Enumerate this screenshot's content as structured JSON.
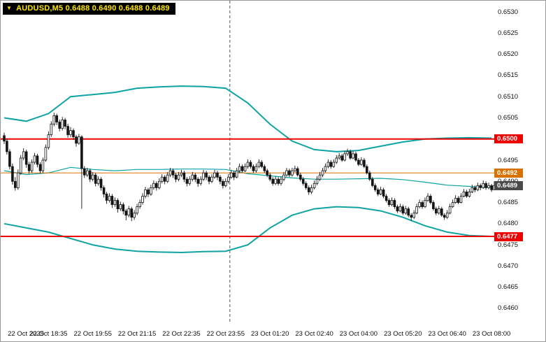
{
  "header": {
    "symbol_ohlc": "AUDUSD,M5  0.6488 0.6490 0.6488 0.6489",
    "symbol": "AUDUSD",
    "timeframe": "M5",
    "open": "0.6488",
    "high": "0.6490",
    "low": "0.6488",
    "close": "0.6489",
    "text_color": "#FFE600",
    "bg": "#000000"
  },
  "colors": {
    "band": "#0FA3A3",
    "bull": "#FFFFFF",
    "bear": "#141414",
    "candle_stroke": "#141414",
    "separator": "#555555",
    "red_line": "#EE0000",
    "orange_line": "#D97100",
    "current_label_bg": "#4A4A4A",
    "axis_text": "#111111"
  },
  "chart_data": {
    "type": "candlestick",
    "title": "AUDUSD,M5",
    "symbol": "AUDUSD",
    "timeframe": "M5",
    "current_bar": {
      "open": 0.6488,
      "high": 0.649,
      "low": 0.6488,
      "close": 0.6489
    },
    "ylim": [
      0.6458,
      0.6532
    ],
    "y_ticks": [
      "0.6530",
      "0.6525",
      "0.6520",
      "0.6515",
      "0.6510",
      "0.6505",
      "0.6500",
      "0.6495",
      "0.6490",
      "0.6485",
      "0.6480",
      "0.6475",
      "0.6470",
      "0.6465",
      "0.6460"
    ],
    "x_labels": [
      "22 Oct 2025",
      "22 Oct 18:35",
      "22 Oct 19:55",
      "22 Oct 21:15",
      "22 Oct 22:35",
      "22 Oct 23:55",
      "23 Oct 01:20",
      "23 Oct 02:40",
      "23 Oct 04:00",
      "23 Oct 05:20",
      "23 Oct 06:40",
      "23 Oct 08:00"
    ],
    "bars_per_x_tick": 16,
    "hlines": [
      {
        "price": 0.65,
        "label": "0.6500",
        "color": "#EE0000",
        "width": 2
      },
      {
        "price": 0.6492,
        "label": "0.6492",
        "color": "#D97100",
        "width": 1
      },
      {
        "price": 0.6477,
        "label": "0.6477",
        "color": "#EE0000",
        "width": 2
      }
    ],
    "current_price_label": {
      "price": 0.6489,
      "label": "0.6489",
      "bg": "#4A4A4A",
      "text": "#FFFFFF"
    },
    "day_separator": {
      "after_bar_index": 81
    },
    "price_base": 0.64,
    "price_unit": "candle and band values are (price - 0.64) * 10000",
    "candles": [
      [
        100.8,
        101.5,
        98.8,
        99.5
      ],
      [
        99.5,
        100.1,
        96.3,
        97
      ],
      [
        97,
        97.6,
        92.8,
        93.5
      ],
      [
        93.5,
        94.2,
        89.2,
        90
      ],
      [
        90,
        91,
        87.8,
        88.5
      ],
      [
        88.5,
        92.8,
        88,
        92
      ],
      [
        92,
        96.2,
        91.5,
        95.5
      ],
      [
        95.5,
        97.8,
        95,
        97
      ],
      [
        97,
        97.5,
        93.2,
        94
      ],
      [
        94,
        94.6,
        91.8,
        92.5
      ],
      [
        92.5,
        95.2,
        92,
        94.5
      ],
      [
        94.5,
        96.7,
        94,
        96
      ],
      [
        96,
        96.5,
        93.3,
        94
      ],
      [
        94,
        94.5,
        91.8,
        92.5
      ],
      [
        92.5,
        95.6,
        92,
        95
      ],
      [
        95,
        98.7,
        94.6,
        98
      ],
      [
        98,
        101.8,
        97.5,
        101
      ],
      [
        101,
        104.2,
        100.5,
        103.5
      ],
      [
        103.5,
        106.2,
        103,
        105.5
      ],
      [
        105.5,
        106,
        103.3,
        104
      ],
      [
        104,
        104.6,
        101.8,
        102.5
      ],
      [
        102.5,
        105.2,
        102,
        104.5
      ],
      [
        104.5,
        105,
        102.3,
        103
      ],
      [
        103,
        103.6,
        100.3,
        101
      ],
      [
        101,
        102.8,
        100.4,
        102
      ],
      [
        102,
        102.5,
        99.8,
        100.5
      ],
      [
        100.5,
        101,
        98.2,
        99
      ],
      [
        99,
        101.2,
        98.6,
        100.5
      ],
      [
        100.5,
        100.9,
        83.5,
        93
      ],
      [
        93,
        93.6,
        90.8,
        91.5
      ],
      [
        91.5,
        93.2,
        91,
        92.5
      ],
      [
        92.5,
        93,
        89.8,
        90.5
      ],
      [
        90.5,
        92.2,
        90,
        91.5
      ],
      [
        91.5,
        92,
        88.8,
        89.5
      ],
      [
        89.5,
        91.2,
        89,
        90.5
      ],
      [
        90.5,
        91,
        87.8,
        88.5
      ],
      [
        88.5,
        89,
        86.2,
        87
      ],
      [
        87,
        87.5,
        84.7,
        85.5
      ],
      [
        85.5,
        87.2,
        85,
        86.5
      ],
      [
        86.5,
        87,
        83.7,
        84.5
      ],
      [
        84.5,
        86.2,
        84,
        85.5
      ],
      [
        85.5,
        86,
        82.6,
        83.5
      ],
      [
        83.5,
        85.2,
        83,
        84.5
      ],
      [
        84.5,
        85,
        82.2,
        83
      ],
      [
        83,
        83.5,
        80.8,
        82
      ],
      [
        82,
        84.2,
        81.5,
        83.5
      ],
      [
        83.5,
        84,
        80.6,
        81.5
      ],
      [
        81.5,
        83.2,
        80.9,
        82.5
      ],
      [
        82.5,
        84.7,
        82,
        84
      ],
      [
        84,
        85.7,
        83.5,
        85
      ],
      [
        85,
        87.2,
        84.5,
        86.5
      ],
      [
        86.5,
        88.7,
        86,
        88
      ],
      [
        88,
        88.5,
        86.3,
        87
      ],
      [
        87,
        89.2,
        86.6,
        88.5
      ],
      [
        88.5,
        90.2,
        88,
        89.5
      ],
      [
        89.5,
        90,
        87.8,
        88.5
      ],
      [
        88.5,
        90.7,
        88.1,
        90
      ],
      [
        90,
        91.7,
        89.5,
        91
      ],
      [
        91,
        91.5,
        89.3,
        90
      ],
      [
        90,
        92.2,
        89.6,
        91.5
      ],
      [
        91.5,
        93.2,
        91,
        92.5
      ],
      [
        92.5,
        93,
        90.8,
        91.5
      ],
      [
        91.5,
        92,
        89.8,
        90.5
      ],
      [
        90.5,
        92.2,
        90,
        91.5
      ],
      [
        91.5,
        92.7,
        91,
        92
      ],
      [
        92,
        92.5,
        89.8,
        90.5
      ],
      [
        90.5,
        91,
        88.8,
        89.5
      ],
      [
        89.5,
        91.2,
        89,
        90.5
      ],
      [
        90.5,
        92.2,
        90,
        91.5
      ],
      [
        91.5,
        92,
        89.8,
        90.5
      ],
      [
        90.5,
        91,
        88.7,
        89.5
      ],
      [
        89.5,
        91.2,
        89,
        90.5
      ],
      [
        90.5,
        92.7,
        90.1,
        92
      ],
      [
        92,
        92.5,
        90.3,
        91
      ],
      [
        91,
        91.5,
        89.3,
        90
      ],
      [
        90,
        91.7,
        89.6,
        91
      ],
      [
        91,
        92.7,
        90.6,
        92
      ],
      [
        92,
        92.5,
        90.3,
        91
      ],
      [
        91,
        91.5,
        89.3,
        90
      ],
      [
        90,
        90.5,
        88.3,
        89
      ],
      [
        89,
        90.7,
        88.6,
        90
      ],
      [
        90,
        91.7,
        89.5,
        91
      ],
      [
        91,
        92.7,
        90.6,
        92
      ],
      [
        92,
        92.5,
        90.3,
        91
      ],
      [
        91,
        93.2,
        90.7,
        92.5
      ],
      [
        92.5,
        94.2,
        92,
        93.5
      ],
      [
        93.5,
        94,
        92.1,
        92.5
      ],
      [
        92.5,
        94.2,
        92.2,
        93.5
      ],
      [
        93.5,
        95.2,
        93,
        94.5
      ],
      [
        94.5,
        95,
        93,
        93.5
      ],
      [
        93.5,
        94,
        92,
        92.5
      ],
      [
        92.5,
        94.2,
        92.1,
        93.5
      ],
      [
        93.5,
        95.2,
        93.1,
        94.5
      ],
      [
        94.5,
        95,
        93.1,
        93.5
      ],
      [
        93.5,
        94,
        92,
        92.5
      ],
      [
        92.5,
        93,
        91,
        91.5
      ],
      [
        91.5,
        92,
        90,
        90.5
      ],
      [
        90.5,
        91,
        89,
        89.5
      ],
      [
        89.5,
        91.2,
        89.1,
        90.5
      ],
      [
        90.5,
        91,
        89,
        89.5
      ],
      [
        89.5,
        91.2,
        89,
        90.5
      ],
      [
        90.5,
        92.2,
        90,
        91.5
      ],
      [
        91.5,
        93.2,
        91.1,
        92.5
      ],
      [
        92.5,
        93,
        91,
        91.5
      ],
      [
        91.5,
        93.2,
        91.1,
        92.5
      ],
      [
        92.5,
        93.7,
        92.1,
        93
      ],
      [
        93,
        93.5,
        91.1,
        91.5
      ],
      [
        91.5,
        92,
        90,
        90.5
      ],
      [
        90.5,
        91,
        89,
        89.5
      ],
      [
        89.5,
        90,
        88,
        88.5
      ],
      [
        88.5,
        89,
        86.8,
        87.5
      ],
      [
        87.5,
        89.2,
        87,
        88.5
      ],
      [
        88.5,
        90.2,
        88.1,
        89.5
      ],
      [
        89.5,
        91.2,
        89.1,
        90.5
      ],
      [
        90.5,
        92.2,
        90.1,
        91.5
      ],
      [
        91.5,
        93.2,
        91,
        92.5
      ],
      [
        92.5,
        94.2,
        92.1,
        93.5
      ],
      [
        93.5,
        95.2,
        93.1,
        94.5
      ],
      [
        94.5,
        95,
        93,
        93.5
      ],
      [
        93.5,
        95.2,
        93.2,
        94.5
      ],
      [
        94.5,
        96.2,
        94.1,
        95.5
      ],
      [
        95.5,
        96.7,
        95.1,
        96
      ],
      [
        96,
        96.5,
        94.6,
        95
      ],
      [
        95,
        97.2,
        94.7,
        96.5
      ],
      [
        96.5,
        97.7,
        96,
        97
      ],
      [
        97,
        97.5,
        95.1,
        95.5
      ],
      [
        95.5,
        97.2,
        95.2,
        96.5
      ],
      [
        96.5,
        97,
        94.6,
        95
      ],
      [
        95,
        95.5,
        93.6,
        94
      ],
      [
        94,
        95.7,
        93.7,
        95
      ],
      [
        95,
        95.5,
        93.1,
        93.5
      ],
      [
        93.5,
        94,
        91.6,
        92
      ],
      [
        92,
        92.5,
        90.1,
        90.5
      ],
      [
        90.5,
        91,
        88.6,
        89
      ],
      [
        89,
        89.5,
        87.5,
        88
      ],
      [
        88,
        88.5,
        86.5,
        87
      ],
      [
        87,
        88.7,
        86.7,
        88
      ],
      [
        88,
        88.5,
        86,
        86.5
      ],
      [
        86.5,
        87,
        85,
        85.5
      ],
      [
        85.5,
        86,
        84,
        84.5
      ],
      [
        84.5,
        86.2,
        84.1,
        85.5
      ],
      [
        85.5,
        86,
        83.5,
        84
      ],
      [
        84,
        84.5,
        82.5,
        83
      ],
      [
        83,
        84.7,
        82.7,
        84
      ],
      [
        84,
        84.5,
        82,
        82.5
      ],
      [
        82.5,
        84.2,
        82.1,
        83.5
      ],
      [
        83.5,
        84,
        81.5,
        82
      ],
      [
        82,
        82.5,
        80.7,
        81.5
      ],
      [
        81.5,
        83.2,
        81.1,
        82.5
      ],
      [
        82.5,
        84.7,
        82.2,
        84
      ],
      [
        84,
        85.7,
        83.6,
        85
      ],
      [
        85,
        85.5,
        83.5,
        84
      ],
      [
        84,
        86.2,
        83.7,
        85.5
      ],
      [
        85.5,
        87.2,
        85.1,
        86.5
      ],
      [
        86.5,
        87,
        84.6,
        85
      ],
      [
        85,
        85.5,
        83.1,
        83.5
      ],
      [
        83.5,
        84,
        82,
        82.5
      ],
      [
        82.5,
        84.2,
        82.1,
        83.5
      ],
      [
        83.5,
        84,
        81.6,
        82
      ],
      [
        82,
        82.5,
        80.9,
        81.5
      ],
      [
        81.5,
        83.2,
        81.1,
        82.5
      ],
      [
        82.5,
        84.7,
        82.2,
        84
      ],
      [
        84,
        85.7,
        83.7,
        85
      ],
      [
        85,
        86.7,
        84.7,
        86
      ],
      [
        86,
        86.5,
        84.6,
        85
      ],
      [
        85,
        87.2,
        84.8,
        86.5
      ],
      [
        86.5,
        88.2,
        86.2,
        87.5
      ],
      [
        87.5,
        88,
        86.1,
        86.5
      ],
      [
        86.5,
        88.2,
        86.2,
        87.5
      ],
      [
        87.5,
        89.2,
        87.2,
        88.5
      ],
      [
        88.5,
        89,
        87.4,
        88
      ],
      [
        88,
        89.7,
        87.7,
        89
      ],
      [
        89,
        89.5,
        87.9,
        88.5
      ],
      [
        88.5,
        90.2,
        88.2,
        89.5
      ],
      [
        89.5,
        90,
        88,
        88.5
      ],
      [
        88.5,
        89.7,
        88.1,
        89
      ],
      [
        89,
        89.4,
        87.5,
        88
      ],
      [
        88,
        90,
        88,
        89
      ]
    ],
    "bollinger_bands": {
      "sample_every_n_bars": 8,
      "upper": [
        105.0,
        104.2,
        106.0,
        110.0,
        110.5,
        111.0,
        112.0,
        112.3,
        112.5,
        112.4,
        112.0,
        108.5,
        103.5,
        99.5,
        97.5,
        97.0,
        97.3,
        98.3,
        99.3,
        100.0,
        100.2,
        100.3,
        100.2
      ],
      "middle": [
        92.5,
        91.6,
        92.0,
        93.3,
        92.8,
        92.5,
        92.8,
        92.8,
        92.9,
        92.9,
        92.8,
        91.8,
        91.3,
        90.8,
        90.5,
        90.5,
        90.6,
        90.7,
        90.4,
        89.8,
        89.1,
        88.8,
        88.6
      ],
      "lower": [
        80.0,
        79.0,
        78.0,
        76.5,
        75.0,
        74.0,
        73.5,
        73.3,
        73.2,
        73.4,
        73.5,
        75.0,
        79.0,
        82.0,
        83.5,
        84.0,
        83.8,
        83.0,
        81.5,
        79.5,
        78.0,
        77.2,
        77.0
      ]
    }
  }
}
